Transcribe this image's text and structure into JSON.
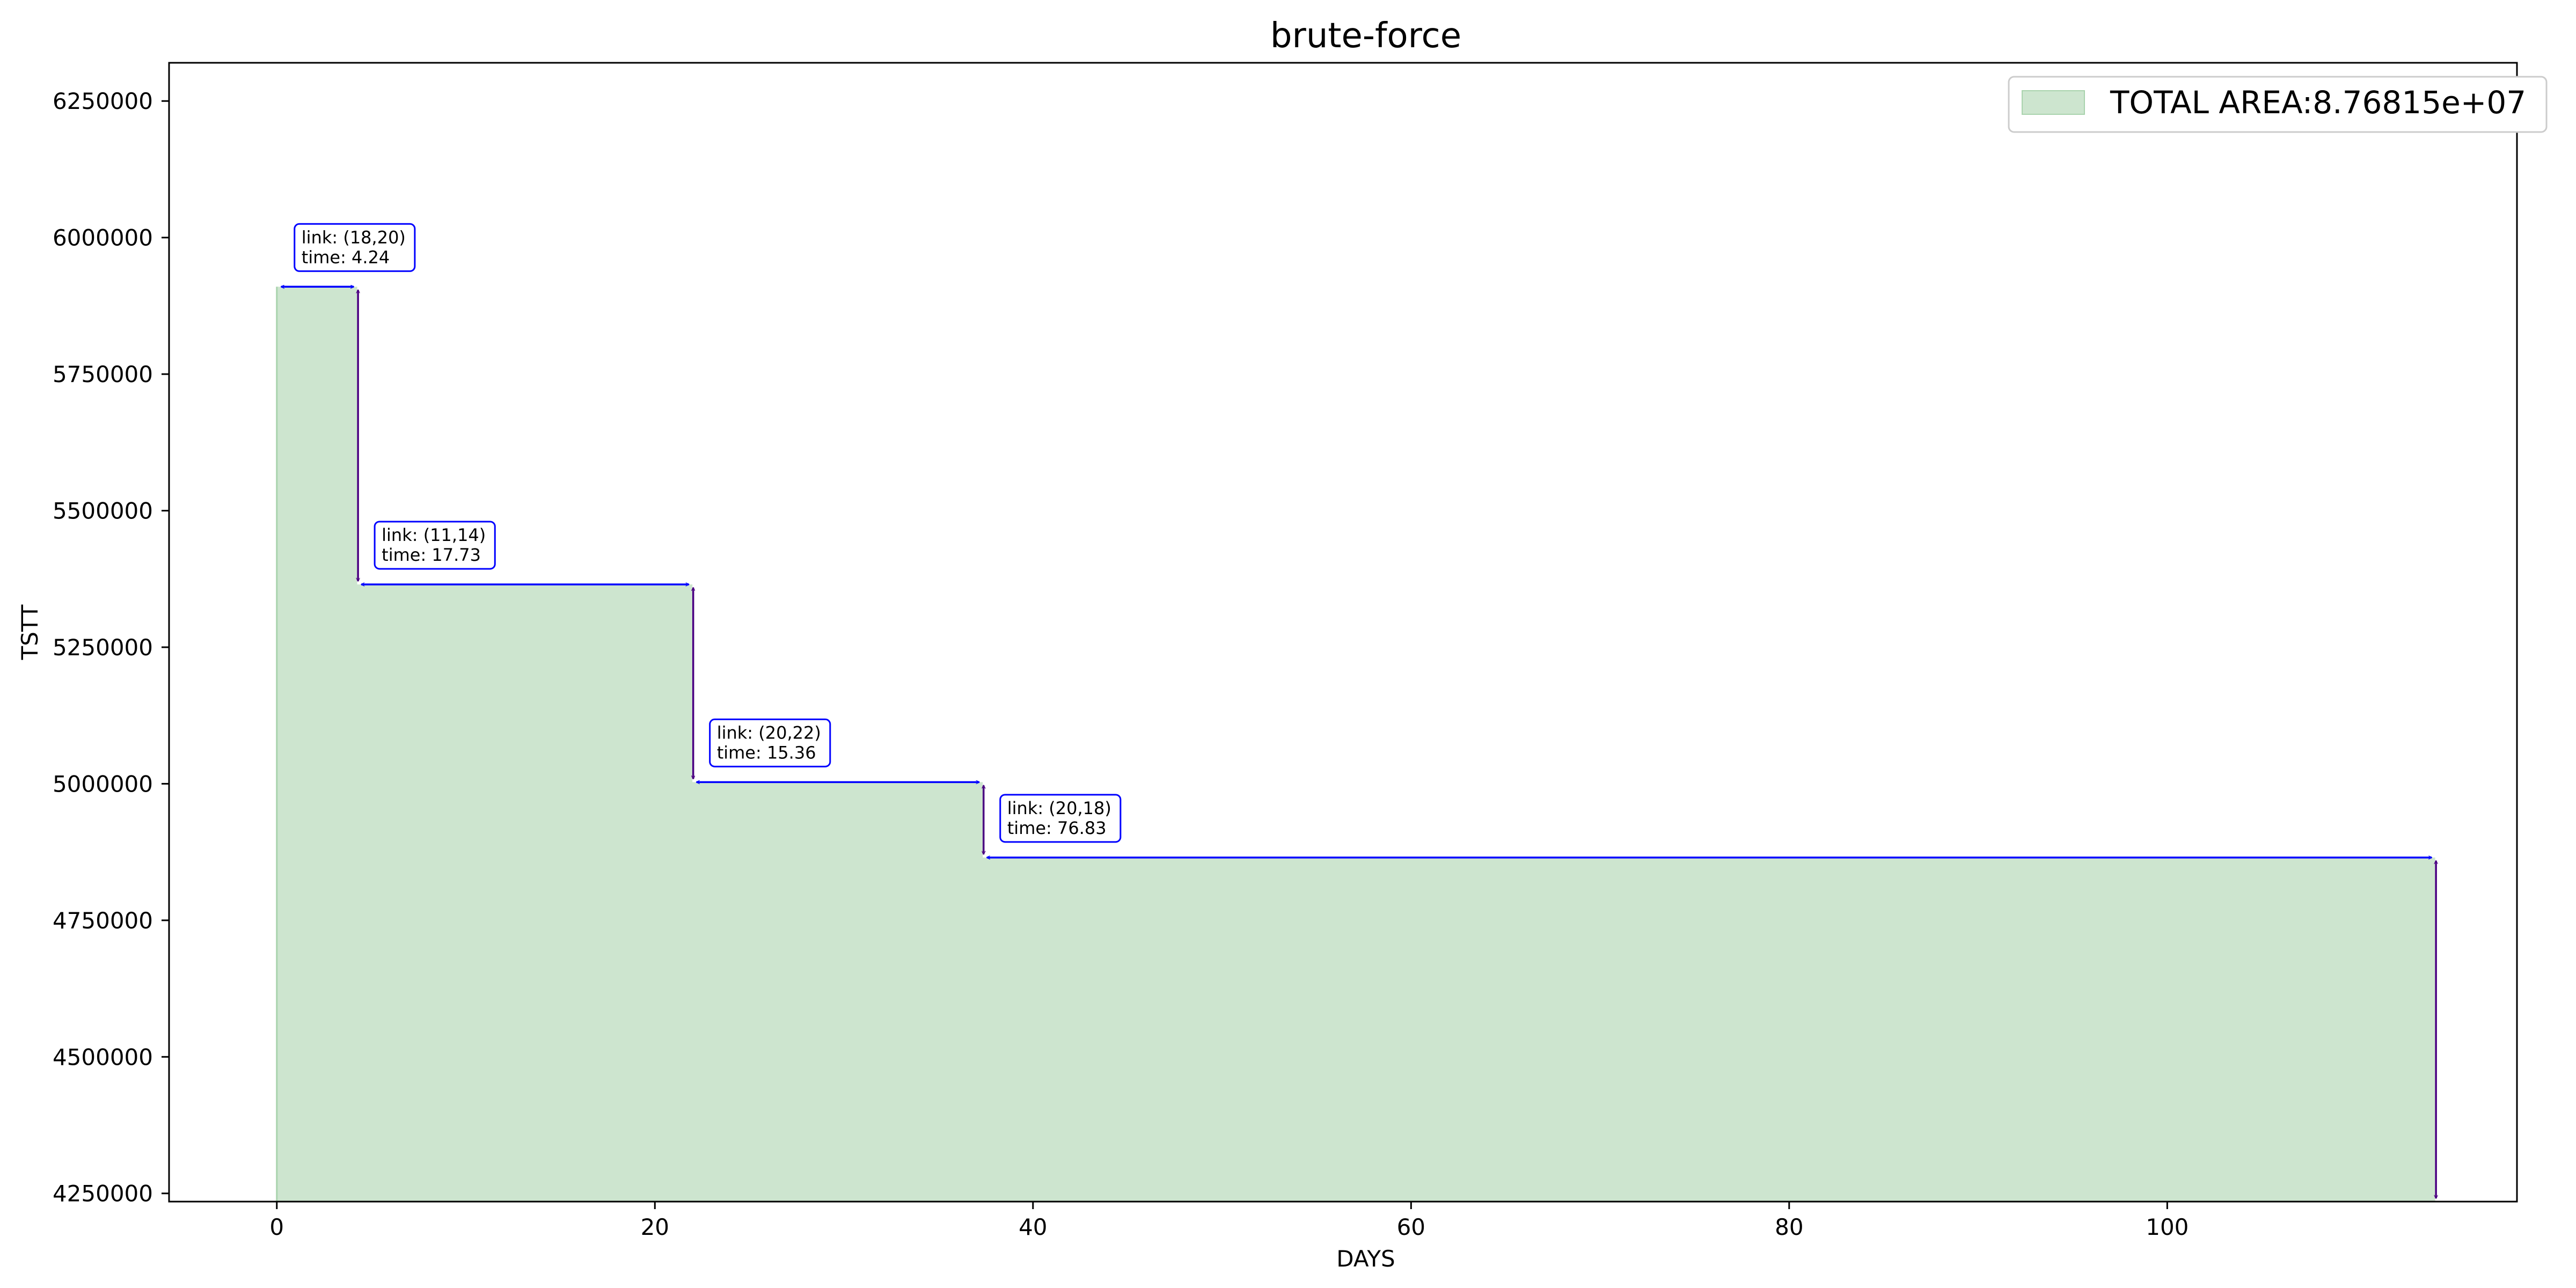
{
  "chart_data": {
    "type": "area",
    "title": "brute-force",
    "xlabel": "DAYS",
    "ylabel": "TSTT",
    "xlim": [
      -5.7,
      118.5
    ],
    "ylim": [
      4235000,
      6320000
    ],
    "x_ticks": [
      0,
      20,
      40,
      60,
      80,
      100
    ],
    "y_ticks": [
      4250000,
      4500000,
      4750000,
      5000000,
      5250000,
      5500000,
      5750000,
      6000000,
      6250000
    ],
    "baseline": 4235000,
    "steps": [
      {
        "x_start": 0,
        "x_end": 4.24,
        "y": 5910000
      },
      {
        "x_start": 4.24,
        "x_end": 21.97,
        "y": 5365000
      },
      {
        "x_start": 21.97,
        "x_end": 37.33,
        "y": 5003000
      },
      {
        "x_start": 37.33,
        "x_end": 114.16,
        "y": 4865000
      }
    ],
    "annotations": [
      {
        "line1": "link: (18,20)",
        "line2": "time: 4.24",
        "x_start": 0,
        "x_end": 4.24,
        "y": 5910000,
        "y_next": 5365000
      },
      {
        "line1": "link: (11,14)",
        "line2": "time: 17.73",
        "x_start": 4.24,
        "x_end": 21.97,
        "y": 5365000,
        "y_next": 5003000
      },
      {
        "line1": "link: (20,22)",
        "line2": "time: 15.36",
        "x_start": 21.97,
        "x_end": 37.33,
        "y": 5003000,
        "y_next": 4865000
      },
      {
        "line1": "link: (20,18)",
        "line2": "time: 76.83",
        "x_start": 37.33,
        "x_end": 114.16,
        "y": 4865000,
        "y_next": 4235000
      }
    ],
    "legend": {
      "label": "TOTAL AREA:8.76815e+07",
      "position": "top-right"
    },
    "colors": {
      "fill": "#cde5cf",
      "fill_edge": "#a9d3ad",
      "h_arrow": "#0000ff",
      "v_arrow": "#4b0082",
      "box_edge": "#0000ff"
    },
    "grid": false
  }
}
